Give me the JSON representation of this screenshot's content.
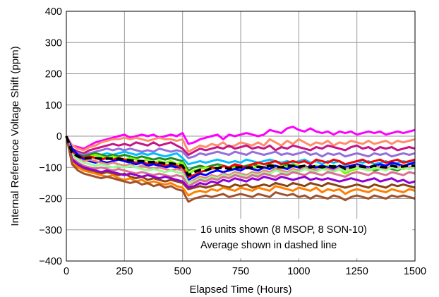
{
  "chart_data": {
    "type": "line",
    "xlabel": "Elapsed Time (Hours)",
    "ylabel": "Internal Reference Voltage Shift (ppm)",
    "xlim": [
      0,
      1500
    ],
    "ylim": [
      -400,
      400
    ],
    "x_ticks": [
      "0",
      "250",
      "500",
      "750",
      "1000",
      "1250",
      "1500"
    ],
    "y_ticks": [
      "400",
      "300",
      "200",
      "100",
      "0",
      "−100",
      "−200",
      "−300",
      "−400"
    ],
    "grid": true,
    "annotations": [
      "16 units shown (8 MSOP, 8 SON-10)",
      "Average shown in dashed line"
    ],
    "x": [
      0,
      25,
      50,
      75,
      100,
      125,
      150,
      175,
      200,
      225,
      250,
      275,
      300,
      325,
      350,
      375,
      400,
      425,
      450,
      475,
      500,
      525,
      550,
      575,
      600,
      625,
      650,
      675,
      700,
      725,
      750,
      775,
      800,
      825,
      850,
      875,
      900,
      925,
      950,
      975,
      1000,
      1025,
      1050,
      1075,
      1100,
      1125,
      1150,
      1175,
      1200,
      1225,
      1250,
      1275,
      1300,
      1325,
      1350,
      1375,
      1400,
      1425,
      1450,
      1475,
      1500
    ],
    "series": [
      {
        "color": "#ff00ff",
        "values": [
          0,
          -30,
          -35,
          -40,
          -30,
          -20,
          -15,
          -10,
          -5,
          0,
          5,
          -5,
          0,
          5,
          0,
          5,
          -5,
          0,
          5,
          0,
          10,
          -25,
          -20,
          -10,
          -5,
          0,
          5,
          -10,
          5,
          0,
          5,
          10,
          5,
          0,
          5,
          20,
          15,
          10,
          25,
          30,
          20,
          15,
          25,
          15,
          10,
          15,
          5,
          15,
          10,
          15,
          5,
          10,
          15,
          10,
          15,
          5,
          10,
          15,
          10,
          15,
          20
        ]
      },
      {
        "color": "#ff8c69",
        "values": [
          0,
          -30,
          -40,
          -45,
          -35,
          -30,
          -20,
          -15,
          -10,
          -10,
          -5,
          -10,
          -5,
          -10,
          -15,
          -10,
          -5,
          -10,
          -10,
          -15,
          -10,
          -50,
          -40,
          -30,
          -35,
          -25,
          -30,
          -20,
          -35,
          -30,
          -20,
          -25,
          -30,
          -20,
          -30,
          -10,
          -20,
          -30,
          -15,
          -25,
          -10,
          -20,
          -30,
          -20,
          -25,
          -15,
          -30,
          -20,
          -25,
          -15,
          -20,
          -25,
          -15,
          -25,
          -20,
          -15,
          -25,
          -15,
          -20,
          -15,
          -10
        ]
      },
      {
        "color": "#c71585",
        "values": [
          0,
          -40,
          -50,
          -55,
          -45,
          -40,
          -35,
          -30,
          -25,
          -30,
          -25,
          -30,
          -20,
          -25,
          -30,
          -20,
          -30,
          -25,
          -20,
          -30,
          -40,
          -60,
          -50,
          -40,
          -45,
          -40,
          -35,
          -40,
          -30,
          -40,
          -35,
          -30,
          -40,
          -35,
          -40,
          -30,
          -45,
          -35,
          -40,
          -30,
          -35,
          -40,
          -45,
          -35,
          -40,
          -30,
          -35,
          -40,
          -45,
          -35,
          -30,
          -40,
          -35,
          -45,
          -35,
          -40,
          -35,
          -45,
          -40,
          -35,
          -40
        ]
      },
      {
        "color": "#9370db",
        "values": [
          0,
          -45,
          -55,
          -60,
          -55,
          -50,
          -45,
          -40,
          -45,
          -40,
          -45,
          -40,
          -45,
          -50,
          -45,
          -50,
          -40,
          -45,
          -50,
          -45,
          -50,
          -70,
          -65,
          -55,
          -60,
          -55,
          -50,
          -55,
          -60,
          -50,
          -55,
          -60,
          -50,
          -55,
          -60,
          -55,
          -50,
          -60,
          -55,
          -60,
          -55,
          -50,
          -60,
          -55,
          -65,
          -55,
          -60,
          -55,
          -65,
          -60,
          -55,
          -60,
          -65,
          -55,
          -60,
          -55,
          -65,
          -60,
          -55,
          -60,
          -55
        ]
      },
      {
        "color": "#00bfff",
        "values": [
          0,
          -50,
          -60,
          -65,
          -60,
          -55,
          -60,
          -55,
          -60,
          -55,
          -50,
          -55,
          -60,
          -55,
          -60,
          -55,
          -60,
          -65,
          -60,
          -55,
          -70,
          -90,
          -85,
          -80,
          -85,
          -80,
          -75,
          -80,
          -85,
          -80,
          -85,
          -75,
          -80,
          -85,
          -80,
          -75,
          -80,
          -85,
          -80,
          -85,
          -80,
          -75,
          -85,
          -80,
          -90,
          -80,
          -85,
          -80,
          -95,
          -85,
          -80,
          -85,
          -80,
          -90,
          -85,
          -80,
          -90,
          -85,
          -80,
          -85,
          -80
        ]
      },
      {
        "color": "#228b22",
        "values": [
          0,
          -55,
          -60,
          -65,
          -60,
          -55,
          -60,
          -65,
          -60,
          -65,
          -60,
          -65,
          -70,
          -65,
          -70,
          -75,
          -70,
          -75,
          -70,
          -75,
          -80,
          -110,
          -100,
          -95,
          -100,
          -95,
          -90,
          -95,
          -100,
          -95,
          -100,
          -95,
          -90,
          -95,
          -100,
          -90,
          -95,
          -100,
          -90,
          -95,
          -100,
          -95,
          -105,
          -100,
          -95,
          -100,
          -95,
          -100,
          -110,
          -105,
          -100,
          -105,
          -100,
          -110,
          -105,
          -100,
          -105,
          -110,
          -100,
          -105,
          -100
        ]
      },
      {
        "color": "#7cfc00",
        "values": [
          0,
          -55,
          -65,
          -70,
          -65,
          -60,
          -65,
          -70,
          -65,
          -70,
          -75,
          -70,
          -75,
          -80,
          -75,
          -85,
          -80,
          -85,
          -80,
          -90,
          -85,
          -120,
          -110,
          -105,
          -100,
          -105,
          -100,
          -95,
          -105,
          -100,
          -95,
          -100,
          -105,
          -95,
          -100,
          -95,
          -105,
          -95,
          -100,
          -90,
          -95,
          -100,
          -105,
          -95,
          -100,
          -95,
          -100,
          -105,
          -120,
          -110,
          -105,
          -100,
          -110,
          -105,
          -100,
          -105,
          -95,
          -100,
          -105,
          -100,
          -95
        ]
      },
      {
        "color": "#ff0000",
        "values": [
          0,
          -50,
          -60,
          -70,
          -65,
          -70,
          -75,
          -70,
          -75,
          -70,
          -75,
          -80,
          -85,
          -80,
          -90,
          -85,
          -90,
          -95,
          -90,
          -95,
          -100,
          -130,
          -125,
          -115,
          -110,
          -100,
          -105,
          -95,
          -100,
          -90,
          -95,
          -100,
          -90,
          -85,
          -90,
          -85,
          -80,
          -90,
          -85,
          -80,
          -85,
          -80,
          -90,
          -75,
          -80,
          -85,
          -75,
          -80,
          -90,
          -85,
          -80,
          -75,
          -85,
          -80,
          -75,
          -85,
          -80,
          -75,
          -85,
          -80,
          -75
        ]
      },
      {
        "color": "#0000ff",
        "values": [
          0,
          -40,
          -60,
          -75,
          -80,
          -85,
          -80,
          -85,
          -80,
          -75,
          -80,
          -85,
          -90,
          -85,
          -95,
          -90,
          -95,
          -100,
          -95,
          -100,
          -110,
          -140,
          -130,
          -120,
          -125,
          -115,
          -110,
          -115,
          -110,
          -105,
          -110,
          -100,
          -105,
          -110,
          -100,
          -105,
          -95,
          -100,
          -105,
          -95,
          -100,
          -105,
          -95,
          -100,
          -95,
          -100,
          -105,
          -95,
          -100,
          -95,
          -90,
          -95,
          -100,
          -95,
          -90,
          -95,
          -85,
          -90,
          -95,
          -90,
          -85
        ]
      },
      {
        "color": "#f08080",
        "values": [
          0,
          -60,
          -70,
          -80,
          -75,
          -80,
          -85,
          -90,
          -85,
          -90,
          -95,
          -90,
          -100,
          -95,
          -100,
          -105,
          -100,
          -105,
          -110,
          -105,
          -110,
          -150,
          -140,
          -130,
          -135,
          -125,
          -130,
          -120,
          -125,
          -115,
          -120,
          -125,
          -115,
          -120,
          -110,
          -115,
          -105,
          -110,
          -115,
          -105,
          -110,
          -100,
          -105,
          -110,
          -100,
          -105,
          -110,
          -100,
          -105,
          -100,
          -95,
          -100,
          -105,
          -95,
          -100,
          -105,
          -95,
          -100,
          -95,
          -100,
          -95
        ]
      },
      {
        "color": "#98fb98",
        "values": [
          0,
          -60,
          -75,
          -85,
          -90,
          -95,
          -90,
          -95,
          -100,
          -95,
          -100,
          -95,
          -100,
          -105,
          -110,
          -105,
          -110,
          -115,
          -110,
          -115,
          -120,
          -150,
          -145,
          -135,
          -140,
          -130,
          -135,
          -125,
          -130,
          -120,
          -125,
          -130,
          -120,
          -125,
          -115,
          -120,
          -110,
          -115,
          -120,
          -110,
          -115,
          -105,
          -110,
          -115,
          -105,
          -110,
          -115,
          -105,
          -110,
          -105,
          -100,
          -105,
          -110,
          -100,
          -105,
          -110,
          -100,
          -105,
          -100,
          -105,
          -100
        ]
      },
      {
        "color": "#db7093",
        "values": [
          0,
          -70,
          -85,
          -95,
          -100,
          -105,
          -100,
          -105,
          -110,
          -105,
          -110,
          -115,
          -120,
          -115,
          -120,
          -125,
          -120,
          -125,
          -130,
          -125,
          -130,
          -160,
          -150,
          -140,
          -145,
          -135,
          -140,
          -130,
          -135,
          -125,
          -130,
          -135,
          -125,
          -130,
          -120,
          -125,
          -130,
          -120,
          -125,
          -115,
          -120,
          -125,
          -115,
          -120,
          -125,
          -115,
          -120,
          -125,
          -130,
          -120,
          -115,
          -120,
          -125,
          -115,
          -120,
          -125,
          -115,
          -120,
          -125,
          -115,
          -120
        ]
      },
      {
        "color": "#8b4513",
        "values": [
          0,
          -80,
          -95,
          -105,
          -110,
          -115,
          -120,
          -115,
          -120,
          -125,
          -120,
          -130,
          -135,
          -130,
          -140,
          -135,
          -140,
          -145,
          -140,
          -145,
          -150,
          -170,
          -165,
          -160,
          -165,
          -160,
          -155,
          -160,
          -165,
          -155,
          -160,
          -155,
          -165,
          -160,
          -155,
          -160,
          -150,
          -155,
          -160,
          -150,
          -155,
          -160,
          -150,
          -155,
          -160,
          -150,
          -155,
          -160,
          -165,
          -160,
          -155,
          -160,
          -165,
          -155,
          -160,
          -165,
          -155,
          -160,
          -155,
          -160,
          -165
        ]
      },
      {
        "color": "#9400d3",
        "values": [
          0,
          -75,
          -90,
          -100,
          -105,
          -110,
          -115,
          -110,
          -115,
          -120,
          -125,
          -120,
          -125,
          -130,
          -125,
          -130,
          -135,
          -130,
          -135,
          -140,
          -145,
          -165,
          -160,
          -150,
          -155,
          -145,
          -150,
          -140,
          -145,
          -135,
          -140,
          -145,
          -135,
          -140,
          -130,
          -135,
          -140,
          -130,
          -135,
          -140,
          -135,
          -130,
          -140,
          -135,
          -140,
          -135,
          -140,
          -145,
          -140,
          -135,
          -140,
          -145,
          -140,
          -135,
          -145,
          -140,
          -135,
          -145,
          -140,
          -150,
          -145
        ]
      },
      {
        "color": "#ff7f00",
        "values": [
          0,
          -85,
          -100,
          -110,
          -115,
          -120,
          -125,
          -130,
          -125,
          -135,
          -140,
          -135,
          -145,
          -140,
          -150,
          -145,
          -150,
          -155,
          -150,
          -160,
          -165,
          -190,
          -180,
          -175,
          -180,
          -170,
          -175,
          -165,
          -170,
          -175,
          -165,
          -170,
          -175,
          -165,
          -170,
          -175,
          -160,
          -165,
          -170,
          -175,
          -165,
          -170,
          -175,
          -165,
          -180,
          -170,
          -175,
          -170,
          -185,
          -175,
          -170,
          -175,
          -180,
          -170,
          -175,
          -180,
          -170,
          -175,
          -180,
          -170,
          -175
        ]
      },
      {
        "color": "#a0522d",
        "values": [
          0,
          -90,
          -110,
          -120,
          -125,
          -130,
          -135,
          -130,
          -135,
          -140,
          -145,
          -150,
          -145,
          -155,
          -150,
          -160,
          -155,
          -165,
          -160,
          -170,
          -175,
          -210,
          -200,
          -195,
          -190,
          -195,
          -190,
          -185,
          -195,
          -190,
          -185,
          -190,
          -195,
          -185,
          -190,
          -195,
          -180,
          -185,
          -190,
          -185,
          -195,
          -190,
          -200,
          -190,
          -195,
          -200,
          -190,
          -195,
          -205,
          -195,
          -190,
          -195,
          -200,
          -190,
          -195,
          -200,
          -190,
          -195,
          -190,
          -195,
          -200
        ]
      },
      {
        "color": "#000000",
        "dashed": true,
        "values": [
          0,
          -55,
          -65,
          -72,
          -70,
          -70,
          -72,
          -72,
          -72,
          -73,
          -75,
          -77,
          -80,
          -80,
          -83,
          -83,
          -85,
          -88,
          -87,
          -90,
          -95,
          -125,
          -115,
          -108,
          -110,
          -103,
          -103,
          -100,
          -105,
          -100,
          -100,
          -102,
          -100,
          -98,
          -100,
          -95,
          -98,
          -100,
          -95,
          -95,
          -98,
          -95,
          -100,
          -95,
          -100,
          -95,
          -98,
          -95,
          -105,
          -100,
          -95,
          -98,
          -100,
          -95,
          -98,
          -100,
          -95,
          -98,
          -97,
          -95,
          -95
        ]
      }
    ]
  }
}
